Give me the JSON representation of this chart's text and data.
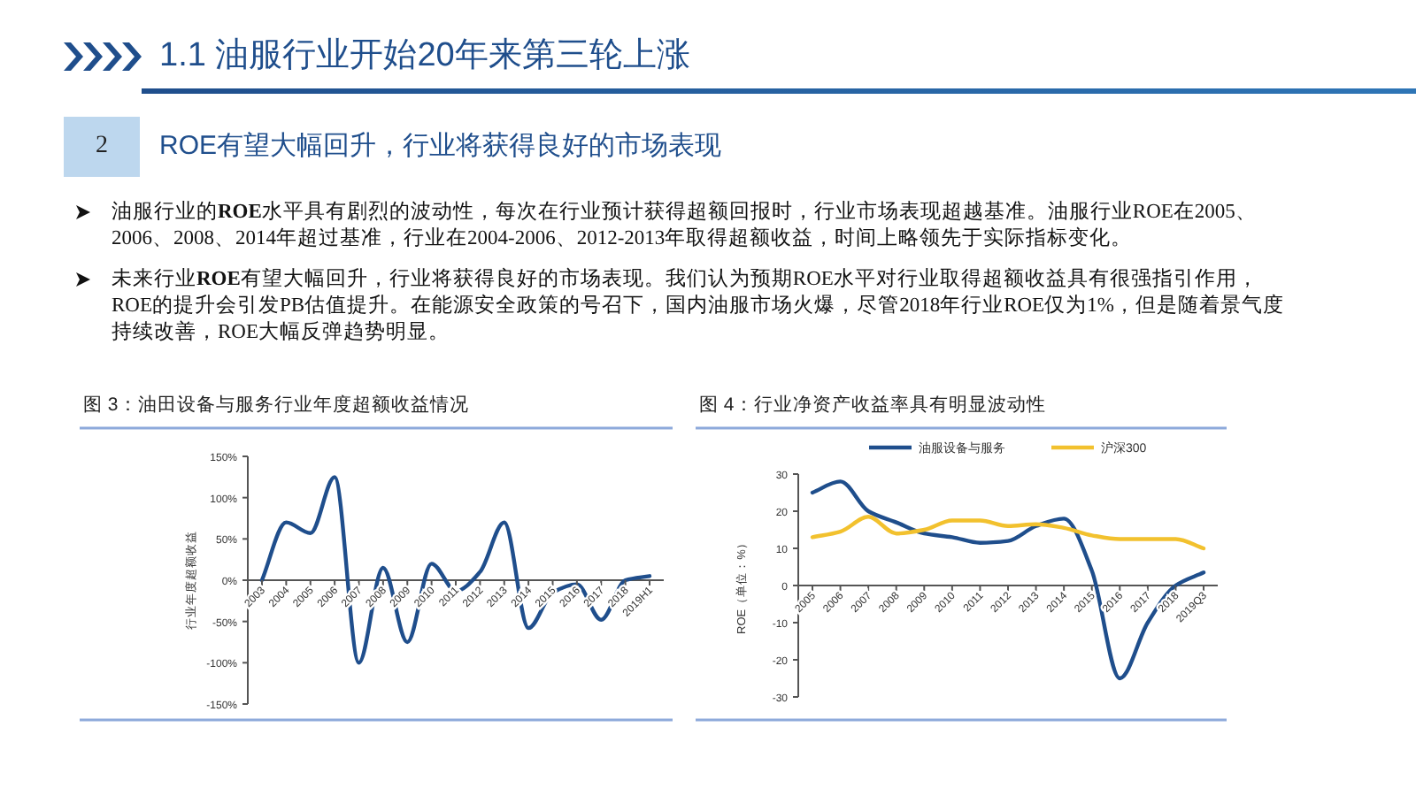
{
  "chart_data": [
    {
      "type": "other",
      "title": "1.1 油服行业开始20年来第三轮上涨",
      "subtitle": "ROE有望大幅回升，行业将获得良好的市场表现",
      "annotations": [
        "2",
        "油服行业的**ROE**水平具有剧烈的波动性，每次在行业预计获得超额回报时，行业市场表现超越基准。油服行业ROE在2005、2006、2008、2014年超过基准，行业在2004-2006、2012-2013年取得超额收益，时间上略领先于实际指标变化。",
        "未来行业**ROE**有望大幅回升，行业将获得良好的市场表现。我们认为预期ROE水平对行业取得超额收益具有很强指引作用，ROE的提升会引发PB估值提升。在能源安全政策的号召下，国内油服市场火爆，尽管2018年行业ROE仅为1%，但是随着景气度持续改善，ROE大幅反弹趋势明显。"
      ]
    },
    {
      "type": "line",
      "title": "图 3：油田设备与服务行业年度超额收益情况",
      "ylabel": "行业年度超额收益",
      "categories": [
        "2003",
        "2004",
        "2005",
        "2006",
        "2007",
        "2008",
        "2009",
        "2010",
        "2011",
        "2012",
        "2013",
        "2014",
        "2015",
        "2016",
        "2017",
        "2018",
        "2019H1"
      ],
      "values": [
        0,
        70,
        57,
        125,
        -100,
        15,
        -75,
        20,
        -13,
        10,
        70,
        -58,
        -15,
        -5,
        -48,
        0,
        5
      ],
      "color": "#1f4e8c",
      "ylim": [
        -150,
        150
      ],
      "yticks": [
        {
          "value": -150,
          "label": "-150%"
        },
        {
          "value": -100,
          "label": "-100%"
        },
        {
          "value": -50,
          "label": "-50%"
        },
        {
          "value": 0,
          "label": "0%"
        },
        {
          "value": 50,
          "label": "50%"
        },
        {
          "value": 100,
          "label": "100%"
        },
        {
          "value": 150,
          "label": "150%"
        }
      ]
    },
    {
      "type": "line",
      "title": "图 4：行业净资产收益率具有明显波动性",
      "ylabel": "ROE（单位：%）",
      "legend": "top",
      "categories": [
        "2005",
        "2006",
        "2007",
        "2008",
        "2009",
        "2010",
        "2011",
        "2012",
        "2013",
        "2014",
        "2015",
        "2016",
        "2017",
        "2018",
        "2019Q3"
      ],
      "series": [
        {
          "name": "油服设备与服务",
          "color": "#1f4e8c",
          "values": [
            25,
            28,
            20,
            17,
            14,
            13,
            11.5,
            12,
            16,
            18,
            4,
            -25,
            -10,
            0,
            3.5
          ]
        },
        {
          "name": "沪深300",
          "color": "#f2c12e",
          "values": [
            13,
            14.5,
            18.5,
            14,
            15,
            17.5,
            17.5,
            16,
            16.5,
            15.5,
            13.5,
            12.5,
            12.5,
            12.5,
            10
          ]
        }
      ],
      "ylim": [
        -30,
        30
      ],
      "yticks": [
        -30,
        -20,
        -10,
        0,
        10,
        20,
        30
      ]
    }
  ]
}
